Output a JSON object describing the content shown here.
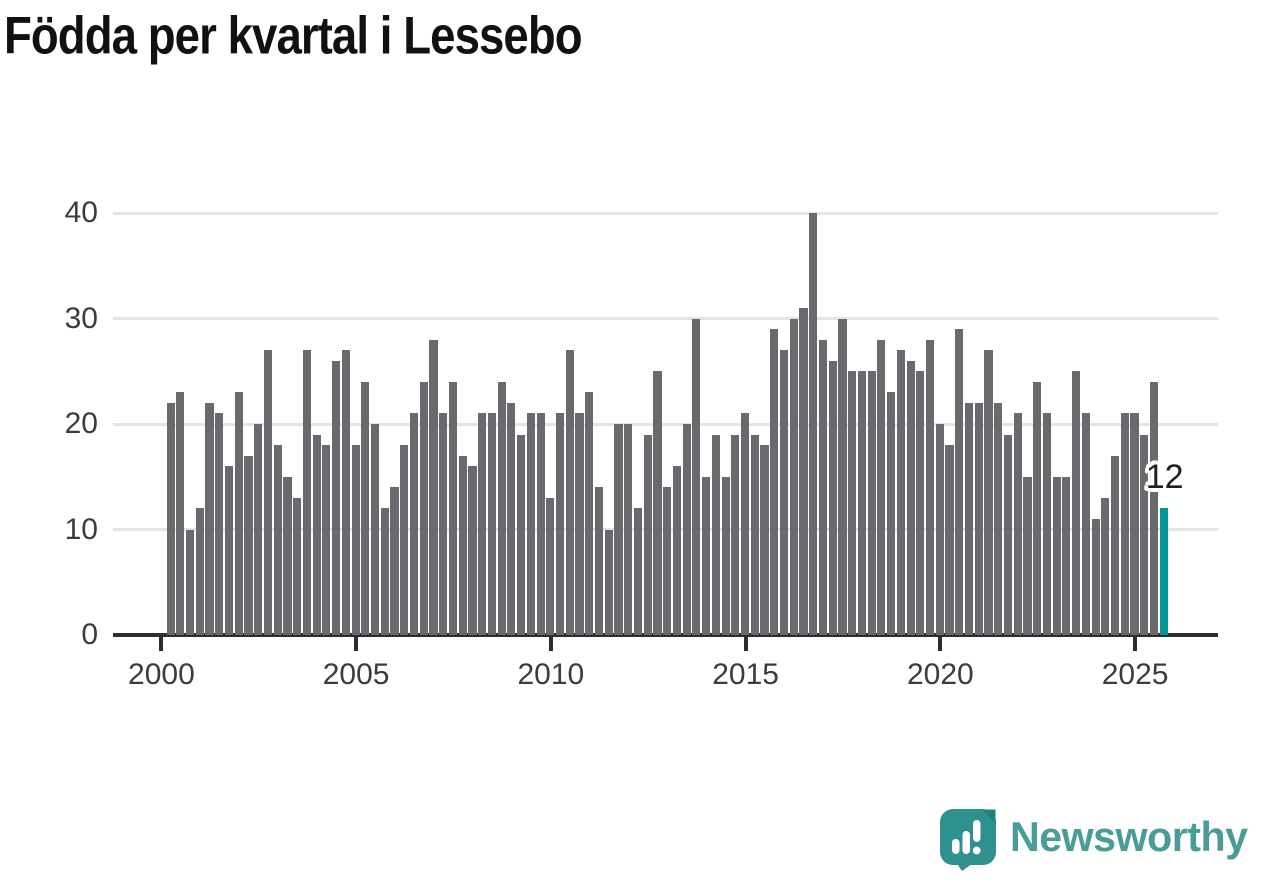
{
  "title": "Födda per kvartal i Lessebo",
  "chart_data": {
    "type": "bar",
    "title": "Födda per kvartal i Lessebo",
    "x_unit": "quarter",
    "x_start": "2000-Q1",
    "x_end": "2025-Q3",
    "x_tick_labels": [
      "2000",
      "2005",
      "2010",
      "2015",
      "2020",
      "2025"
    ],
    "x_tick_indices": [
      0,
      20,
      40,
      60,
      80,
      100
    ],
    "y_ticks": [
      0,
      10,
      20,
      30,
      40
    ],
    "ylim": [
      0,
      42
    ],
    "grid": "horizontal",
    "legend": "none",
    "series": [
      {
        "name": "Födda per kvartal",
        "values": [
          22,
          23,
          10,
          12,
          22,
          21,
          16,
          23,
          17,
          20,
          27,
          18,
          15,
          13,
          27,
          19,
          18,
          26,
          27,
          18,
          24,
          20,
          12,
          14,
          18,
          21,
          24,
          28,
          21,
          24,
          17,
          16,
          21,
          21,
          24,
          22,
          19,
          21,
          21,
          13,
          21,
          27,
          21,
          23,
          14,
          10,
          20,
          20,
          12,
          19,
          25,
          14,
          16,
          20,
          30,
          15,
          19,
          15,
          19,
          21,
          19,
          18,
          29,
          27,
          30,
          31,
          40,
          28,
          26,
          30,
          25,
          25,
          25,
          28,
          23,
          27,
          26,
          25,
          28,
          20,
          18,
          29,
          22,
          22,
          27,
          22,
          19,
          21,
          15,
          24,
          21,
          15,
          15,
          25,
          21,
          11,
          13,
          17,
          21,
          21,
          19,
          24,
          12
        ]
      }
    ],
    "highlight": {
      "index": 102,
      "value": 12,
      "label": "12",
      "color": "#009892"
    },
    "bar_color": "#69696e",
    "grid_color": "#e4e4e4",
    "axis_color": "#2d2d2d",
    "tick_text_color": "#3c3c3c"
  },
  "branding": {
    "wordmark": "Newsworthy",
    "icon": "newsworthy-speech-bubble-chart-icon",
    "icon_color": "#2e918d",
    "icon_fold_color": "#257f7b",
    "text_color": "#4a9c98"
  }
}
